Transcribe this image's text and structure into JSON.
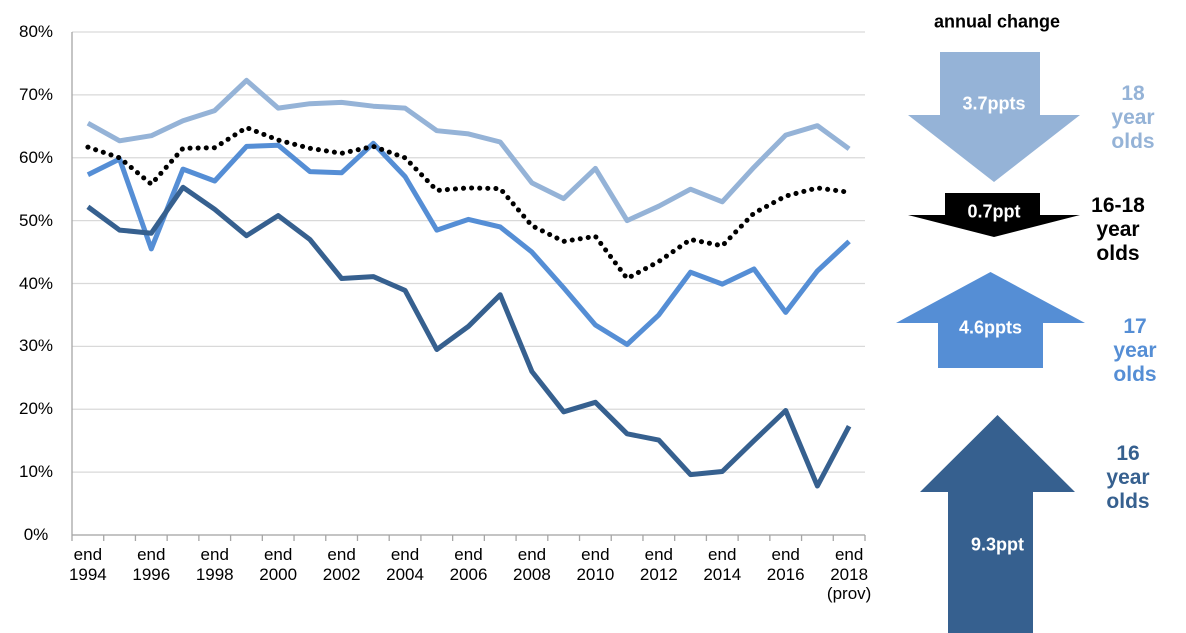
{
  "chart_data": {
    "type": "line",
    "categories": [
      "end\n1994",
      null,
      "end\n1996",
      null,
      "end\n1998",
      null,
      "end\n2000",
      null,
      "end\n2002",
      null,
      "end\n2004",
      null,
      "end\n2006",
      null,
      "end\n2008",
      null,
      "end\n2010",
      null,
      "end\n2012",
      null,
      "end\n2014",
      null,
      "end\n2016",
      null,
      "end\n2018\n(prov)"
    ],
    "ylim": [
      0,
      80
    ],
    "yticks": [
      {
        "value": 0,
        "label": "0%"
      },
      {
        "value": 10,
        "label": "10%"
      },
      {
        "value": 20,
        "label": "20%"
      },
      {
        "value": 30,
        "label": "30%"
      },
      {
        "value": 40,
        "label": "40%"
      },
      {
        "value": 50,
        "label": "50%"
      },
      {
        "value": 60,
        "label": "60%"
      },
      {
        "value": 70,
        "label": "70%"
      },
      {
        "value": 80,
        "label": "80%"
      }
    ],
    "grid": true,
    "annotation_title": "annual change",
    "series": [
      {
        "name": "18 year\nolds",
        "color": "#95b3d7",
        "dash": "solid",
        "change_label": "3.7ppts",
        "direction": "down",
        "values": [
          65.5,
          62.7,
          63.5,
          65.9,
          67.5,
          72.3,
          67.9,
          68.6,
          68.8,
          68.2,
          67.9,
          64.3,
          63.8,
          62.5,
          56,
          53.5,
          58.3,
          50,
          52.3,
          55,
          53,
          58.5,
          63.6,
          65.1,
          61.4
        ]
      },
      {
        "name": "16-18\nyear\nolds",
        "color": "#000000",
        "dash": "dotted",
        "change_label": "0.7ppt",
        "direction": "down",
        "values": [
          61.7,
          60,
          55.8,
          61.5,
          61.6,
          64.8,
          62.8,
          61.5,
          60.7,
          61.8,
          60,
          54.8,
          55.2,
          55.1,
          49.2,
          46.7,
          47.5,
          40.8,
          43.5,
          47,
          46,
          51.2,
          53.9,
          55.2,
          54.5
        ]
      },
      {
        "name": "17 year\nolds",
        "color": "#558ed5",
        "dash": "solid",
        "change_label": "4.6ppts",
        "direction": "up",
        "values": [
          57.3,
          59.8,
          45.5,
          58.2,
          56.3,
          61.8,
          62,
          57.8,
          57.6,
          62.3,
          57,
          48.5,
          50.2,
          49,
          45,
          39.3,
          33.4,
          30.3,
          35,
          41.8,
          39.9,
          42.3,
          35.4,
          42,
          46.7
        ]
      },
      {
        "name": "16 year\nolds",
        "color": "#36608f",
        "dash": "solid",
        "change_label": "9.3ppt",
        "direction": "up",
        "values": [
          52.2,
          48.5,
          48,
          55.3,
          51.8,
          47.6,
          50.8,
          47,
          40.8,
          41.1,
          38.9,
          29.5,
          33.2,
          38.2,
          26,
          19.6,
          21.1,
          16.1,
          15.1,
          9.6,
          10.1,
          15,
          19.8,
          7.8,
          17.3
        ]
      }
    ]
  }
}
